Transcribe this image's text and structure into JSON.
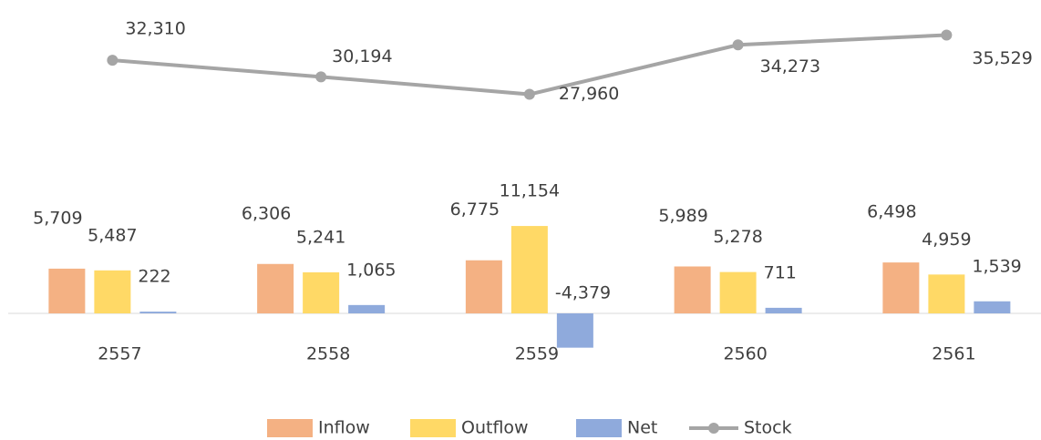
{
  "chart_data": {
    "type": "bar-line",
    "categories": [
      "2557",
      "2558",
      "2559",
      "2560",
      "2561"
    ],
    "ylim": [
      -10000,
      40000
    ],
    "series": [
      {
        "name": "Inflow",
        "type": "bar",
        "color": "#f4b183",
        "values": [
          5709,
          6306,
          6775,
          5989,
          6498
        ],
        "value_labels": [
          "5,709",
          "6,306",
          "6,775",
          "5,989",
          "6,498"
        ]
      },
      {
        "name": "Outflow",
        "type": "bar",
        "color": "#ffd966",
        "values": [
          5487,
          5241,
          11154,
          5278,
          4959
        ],
        "value_labels": [
          "5,487",
          "5,241",
          "11,154",
          "5,278",
          "4,959"
        ]
      },
      {
        "name": "Net",
        "type": "bar",
        "color": "#8faadc",
        "values": [
          222,
          1065,
          -4379,
          711,
          1539
        ],
        "value_labels": [
          "222",
          "1,065",
          "-4,379",
          "711",
          "1,539"
        ]
      },
      {
        "name": "Stock",
        "type": "line",
        "color": "#a5a5a5",
        "values": [
          32310,
          30194,
          27960,
          34273,
          35529
        ],
        "value_labels": [
          "32,310",
          "30,194",
          "27,960",
          "34,273",
          "35,529"
        ]
      }
    ]
  }
}
